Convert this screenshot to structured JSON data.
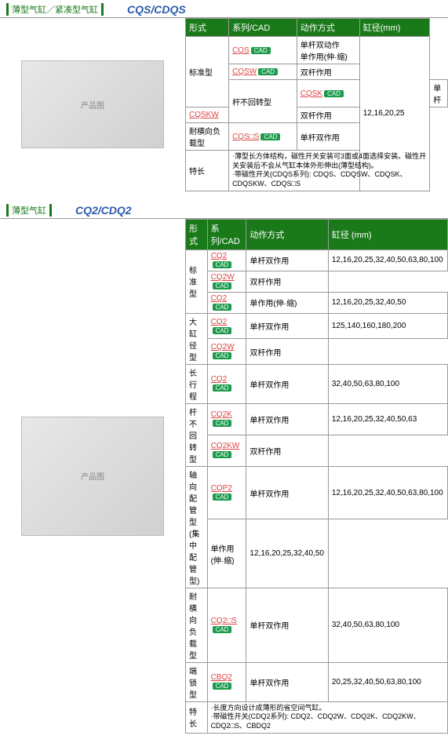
{
  "s1": {
    "title": "薄型气缸／紧凑型气缸",
    "model": "CQS/CDQS",
    "headers": [
      "形式",
      "系列/CAD",
      "动作方式",
      "缸径(mm)"
    ],
    "rows": [
      {
        "form": "标准型",
        "series": "CQS",
        "cad": true,
        "action": "单杆双动作\n单作用(伸·缩)",
        "bore": "12,16,20,25",
        "fRs": 3,
        "bRs": 6
      },
      {
        "series": "CQSW",
        "cad": true,
        "action": "双杆作用"
      },
      {
        "form": "杆不回转型",
        "series": "CQSK",
        "cad": true,
        "action": "单杆",
        "fRs": 2
      },
      {
        "series": "CQSKW",
        "action": "双杆作用"
      },
      {
        "form": "耐横向负载型",
        "series": "CQS□S",
        "cad": true,
        "action": "单杆双作用"
      },
      {
        "form": "特长",
        "note": "·薄型长方体结构，磁性开关安装可3面或4面选择安装。磁性开关安装后不会从气缸本体外形伸出(薄型结构)。\n·带磁性开关(CDQS系列): CDQS、CDQSW、CDQSK、CDQSKW、CDQS□S",
        "cs": 3
      }
    ]
  },
  "s2": {
    "title": "薄型气缸",
    "model": "CQ2/CDQ2",
    "headers": [
      "形式",
      "系列/CAD",
      "动作方式",
      "缸径 (mm)"
    ],
    "rows": [
      {
        "form": "标准型",
        "series": "CQ2",
        "cad": true,
        "action": "单杆双作用",
        "bore": "12,16,20,25,32,40,50,63,80,100",
        "fRs": 3
      },
      {
        "series": "CQ2W",
        "cad": true,
        "action": "双杆作用"
      },
      {
        "series": "CQ2",
        "cad": true,
        "action": "单作用(伸·缩)",
        "bore": "12,16,20,25,32,40,50"
      },
      {
        "form": "大缸径型",
        "series": "CQ2",
        "cad": true,
        "action": "单杆双作用",
        "bore": "125,140,160,180,200",
        "fRs": 2
      },
      {
        "series": "CQ2W",
        "cad": true,
        "action": "双杆作用"
      },
      {
        "form": "长行程",
        "series": "CQ2",
        "cad": true,
        "action": "单杆双作用",
        "bore": "32,40,50,63,80,100"
      },
      {
        "form": "杆不回转型",
        "series": "CQ2K",
        "cad": true,
        "action": "单杆双作用",
        "bore": "12,16,20,25,32,40,50,63",
        "fRs": 2
      },
      {
        "series": "CQ2KW",
        "cad": true,
        "action": "双杆作用"
      },
      {
        "form": "轴向配管型\n(集中配管型)",
        "series": "CQP2",
        "cad": true,
        "action": "单杆双作用",
        "bore": "12,16,20,25,32,40,50,63,80,100",
        "fRs": 2
      },
      {
        "action": "单作用(伸·缩)",
        "bore": "12,16,20,25,32,40,50",
        "skipS": true
      },
      {
        "form": "耐横向负载型",
        "series": "CQ2□S",
        "cad": true,
        "action": "单杆双作用",
        "bore": "32,40,50,63,80,100"
      },
      {
        "form": "端锁型",
        "series": "CBQ2",
        "cad": true,
        "action": "单杆双作用",
        "bore": "20,25,32,40,50,63,80,100"
      },
      {
        "form": "特长",
        "note": "·长度方向设计成薄形的省空间气缸。\n·带磁性开关(CDQ2系列): CDQ2、CDQ2W、CDQ2K、CDQ2KW、CDQ2□S、CBDQ2",
        "cs": 3
      }
    ]
  }
}
